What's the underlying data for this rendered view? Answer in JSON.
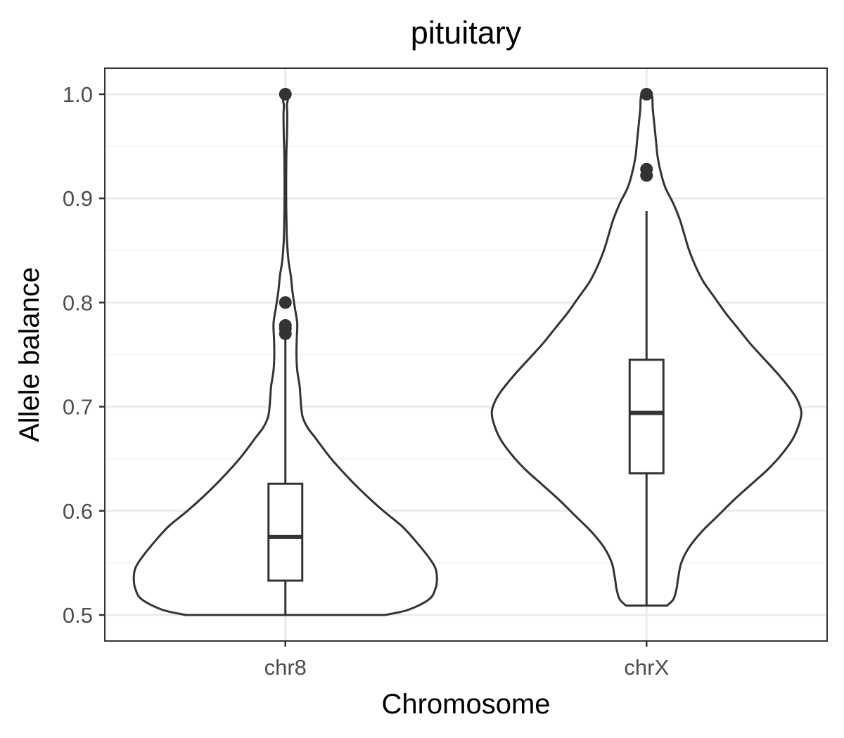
{
  "chart_data": {
    "type": "violin",
    "title": "pituitary",
    "xlabel": "Chromosome",
    "ylabel": "Allele balance",
    "categories": [
      "chr8",
      "chrX"
    ],
    "ylim": [
      0.475,
      1.025
    ],
    "yticks": [
      0.5,
      0.6,
      0.7,
      0.8,
      0.9,
      1.0
    ],
    "ytick_labels": [
      "0.5",
      "0.6",
      "0.7",
      "0.8",
      "0.9",
      "1.0"
    ],
    "grid": true,
    "legend": "none",
    "colors": {
      "panel_border": "#333333",
      "grid_major": "#ebebeb",
      "grid_minor": "#f2f2f2",
      "stroke": "#333333",
      "tick_label": "#4d4d4d",
      "text": "#000000"
    },
    "groups": [
      {
        "category": "chr8",
        "box": {
          "q1": 0.533,
          "median": 0.575,
          "q3": 0.626,
          "whisker_low": 0.5,
          "whisker_high": 0.765
        },
        "outliers": [
          0.77,
          0.775,
          0.778,
          0.8,
          1.0
        ],
        "density_y": [
          0.5,
          0.505,
          0.515,
          0.525,
          0.535,
          0.545,
          0.555,
          0.57,
          0.585,
          0.6,
          0.615,
          0.63,
          0.65,
          0.67,
          0.68,
          0.69,
          0.7,
          0.71,
          0.72,
          0.735,
          0.75,
          0.765,
          0.78,
          0.795,
          0.81,
          0.825,
          0.84,
          0.86,
          0.88,
          0.9,
          0.94,
          0.96,
          0.98,
          0.99,
          1.0
        ],
        "density_halfwidth": [
          0.63,
          0.78,
          0.91,
          0.95,
          0.96,
          0.95,
          0.91,
          0.83,
          0.74,
          0.62,
          0.51,
          0.41,
          0.29,
          0.19,
          0.14,
          0.11,
          0.1,
          0.095,
          0.09,
          0.075,
          0.07,
          0.072,
          0.075,
          0.06,
          0.045,
          0.035,
          0.02,
          0.01,
          0.007,
          0.005,
          0.006,
          0.01,
          0.012,
          0.01,
          0.02
        ]
      },
      {
        "category": "chrX",
        "box": {
          "q1": 0.636,
          "median": 0.694,
          "q3": 0.745,
          "whisker_low": 0.509,
          "whisker_high": 0.888
        },
        "outliers": [
          0.922,
          0.928,
          1.0
        ],
        "density_y": [
          0.509,
          0.515,
          0.525,
          0.535,
          0.55,
          0.565,
          0.58,
          0.595,
          0.61,
          0.625,
          0.64,
          0.655,
          0.67,
          0.685,
          0.695,
          0.705,
          0.715,
          0.73,
          0.745,
          0.76,
          0.775,
          0.79,
          0.805,
          0.82,
          0.835,
          0.85,
          0.865,
          0.88,
          0.895,
          0.91,
          0.925,
          0.94,
          0.955,
          0.97,
          0.985,
          1.0
        ],
        "density_halfwidth": [
          0.13,
          0.17,
          0.19,
          0.2,
          0.22,
          0.27,
          0.35,
          0.45,
          0.55,
          0.66,
          0.77,
          0.86,
          0.93,
          0.97,
          0.98,
          0.96,
          0.92,
          0.84,
          0.75,
          0.66,
          0.58,
          0.5,
          0.43,
          0.36,
          0.31,
          0.27,
          0.24,
          0.21,
          0.17,
          0.12,
          0.09,
          0.07,
          0.06,
          0.05,
          0.04,
          0.03
        ]
      }
    ]
  }
}
